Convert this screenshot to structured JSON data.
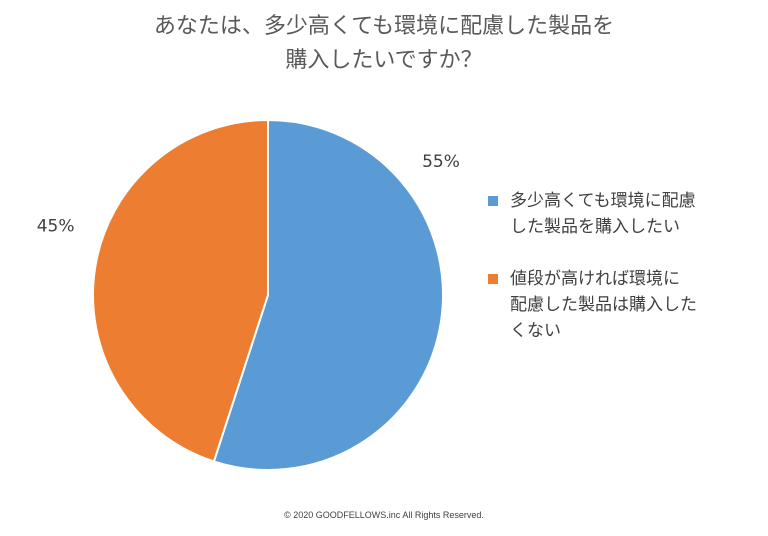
{
  "chart_data": {
    "type": "pie",
    "title_lines": [
      "あなたは、多少高くても環境に配慮した製品を",
      "購入したいですか？"
    ],
    "slices": [
      {
        "name": "多少高くても環境に配慮した製品を購入したい",
        "legend_text": "多少高くても環境に配慮\nした製品を購入したい",
        "value": 55,
        "label": "55%",
        "color": "#5B9BD5"
      },
      {
        "name": "値段が高ければ環境に配慮した製品は購入したくない",
        "legend_text": "値段が高ければ環境に\n配慮した製品は購入した\nくない",
        "value": 45,
        "label": "45%",
        "color": "#ED7D31"
      }
    ],
    "start_angle_deg": 0,
    "direction": "clockwise",
    "legend_position": "right"
  },
  "footer": "© 2020 GOODFELLOWS.inc   All Rights Reserved."
}
